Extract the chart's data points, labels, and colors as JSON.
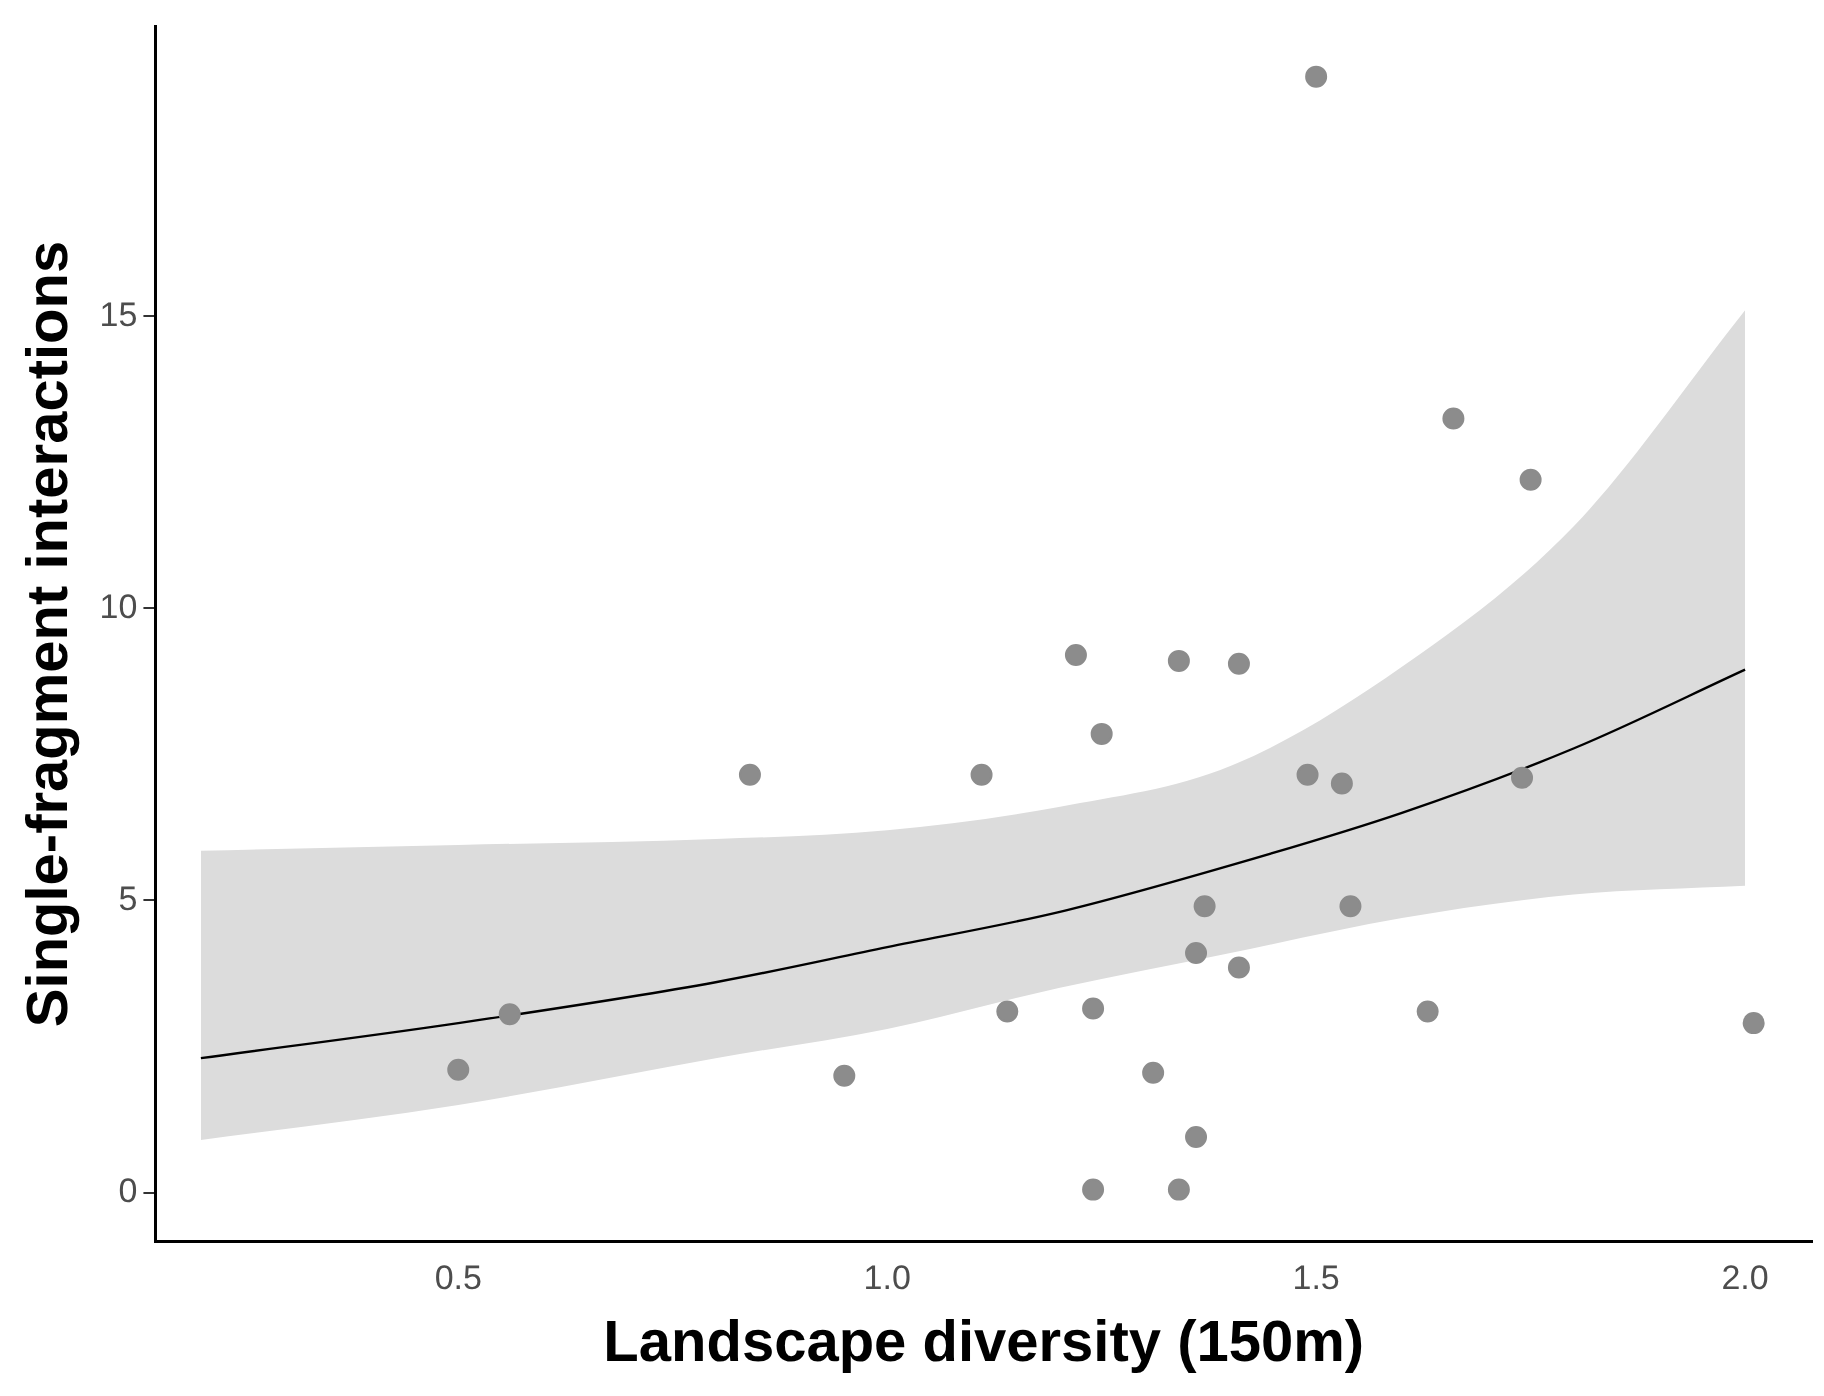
{
  "chart_data": {
    "type": "scatter",
    "xlabel": "Landscape diversity (150m)",
    "ylabel": "Single-fragment interactions",
    "xlim": [
      0.147,
      2.078
    ],
    "xticks": [
      {
        "value": 0.5,
        "label": "0.5"
      },
      {
        "value": 1,
        "label": "1.0"
      },
      {
        "value": 1.5,
        "label": "1.5"
      },
      {
        "value": 2,
        "label": "2.0"
      }
    ],
    "ylim": [
      -0.84,
      19.96
    ],
    "yticks": [
      0,
      5,
      10,
      15
    ],
    "grid": false,
    "legend": false,
    "marker": "circle",
    "series": [
      {
        "color": "#8c8c8c",
        "x": [
          0.5,
          0.56,
          0.84,
          0.95,
          1.11,
          1.14,
          1.22,
          1.24,
          1.25,
          1.24,
          1.31,
          1.34,
          1.34,
          1.36,
          1.36,
          1.37,
          1.41,
          1.41,
          1.49,
          1.53,
          1.5,
          1.54,
          1.63,
          1.66,
          1.75,
          1.74,
          2.01
        ],
        "values": [
          2.1,
          3.05,
          7.15,
          2.0,
          7.15,
          3.1,
          9.2,
          3.15,
          7.85,
          0.05,
          2.05,
          9.1,
          0.05,
          0.95,
          4.1,
          4.9,
          9.05,
          3.85,
          7.15,
          7.0,
          19.1,
          4.9,
          3.1,
          13.25,
          12.2,
          7.1,
          2.9
        ]
      },
      {
        "type": "line",
        "marker": "none",
        "color": "#000000",
        "x": [
          0.2,
          0.5,
          0.8,
          1.0,
          1.2,
          1.4,
          1.6,
          1.8,
          2.0
        ],
        "values": [
          2.3,
          2.9,
          3.6,
          4.2,
          4.8,
          5.6,
          6.5,
          7.6,
          8.95
        ],
        "lower": [
          0.9,
          1.5,
          2.3,
          2.8,
          3.5,
          4.1,
          4.7,
          5.1,
          5.25
        ],
        "upper": [
          5.85,
          5.95,
          6.05,
          6.2,
          6.6,
          7.3,
          9.0,
          11.4,
          15.1
        ]
      }
    ]
  }
}
